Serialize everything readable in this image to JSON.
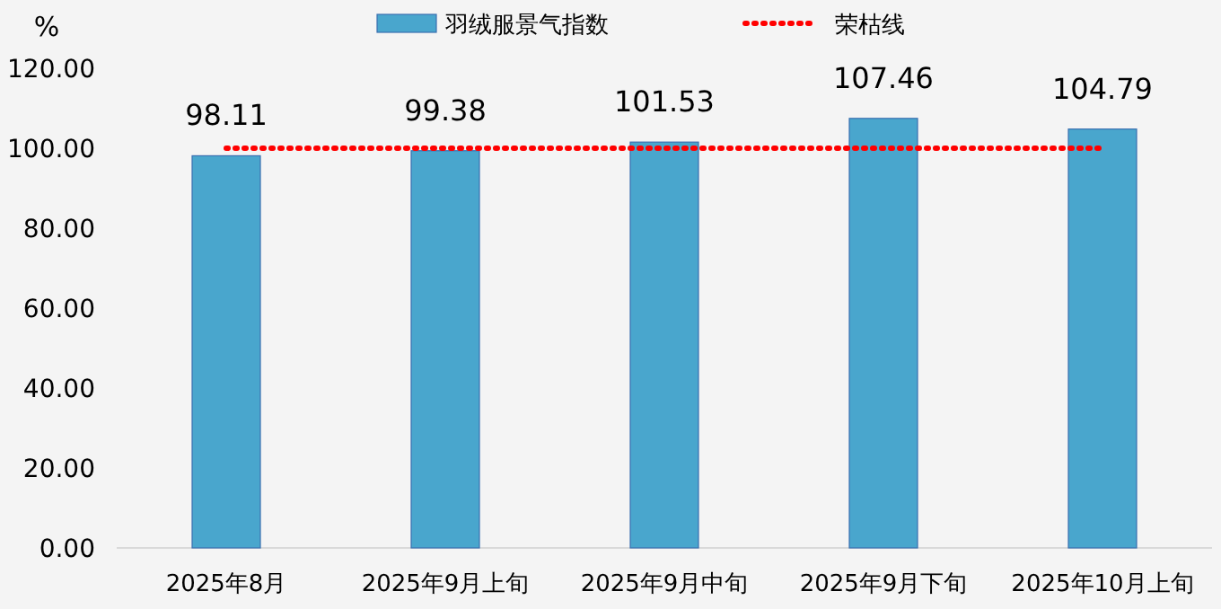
{
  "chart_data": {
    "type": "bar",
    "ylabel": "%",
    "categories": [
      "2025年8月",
      "2025年9月上旬",
      "2025年9月中旬",
      "2025年9月下旬",
      "2025年10月上旬"
    ],
    "series": [
      {
        "name": "羽绒服景气指数",
        "color": "#49a6cd",
        "values": [
          98.11,
          99.38,
          101.53,
          107.46,
          104.79
        ]
      }
    ],
    "ylim": [
      0,
      120
    ],
    "yticks": [
      {
        "value": 0,
        "label": "0.00"
      },
      {
        "value": 20,
        "label": "20.00"
      },
      {
        "value": 40,
        "label": "40.00"
      },
      {
        "value": 60,
        "label": "60.00"
      },
      {
        "value": 80,
        "label": "80.00"
      },
      {
        "value": 100,
        "label": "100.00"
      },
      {
        "value": 120,
        "label": "120.00"
      }
    ],
    "ref_lines": [
      {
        "axis": "y",
        "value": 100,
        "label": "荣枯线",
        "color": "#ff0000",
        "line_style": "dotted"
      }
    ],
    "data_labels": true,
    "legend": "top",
    "grid": false
  }
}
